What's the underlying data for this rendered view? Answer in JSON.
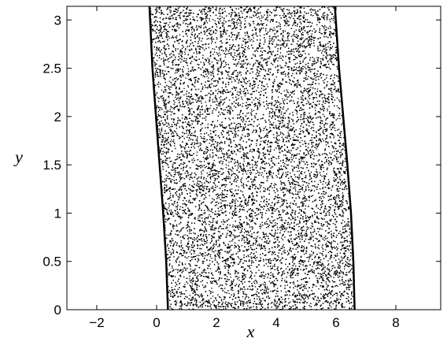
{
  "chart_data": {
    "type": "scatter",
    "title": "",
    "xlabel": "x",
    "ylabel": "y",
    "xlim": [
      -3,
      9.5
    ],
    "ylim": [
      0,
      3.1416
    ],
    "xticks": [
      -2,
      0,
      2,
      4,
      6,
      8
    ],
    "xtick_labels": [
      "−2",
      "0",
      "2",
      "4",
      "6",
      "8"
    ],
    "yticks": [
      0,
      0.5,
      1,
      1.5,
      2,
      2.5,
      3
    ],
    "ytick_labels": [
      "0",
      "0.5",
      "1",
      "1.5",
      "2",
      "2.5",
      "3"
    ],
    "grid": false,
    "legend": "none",
    "marker_color": "#000000",
    "band": {
      "left_boundary": [
        [
          0.38,
          0
        ],
        [
          0.32,
          0.5
        ],
        [
          0.22,
          1.0
        ],
        [
          0.1,
          1.5
        ],
        [
          -0.02,
          2.0
        ],
        [
          -0.14,
          2.5
        ],
        [
          -0.24,
          3.1416
        ]
      ],
      "right_boundary": [
        [
          6.62,
          0
        ],
        [
          6.58,
          0.5
        ],
        [
          6.5,
          1.0
        ],
        [
          6.38,
          1.5
        ],
        [
          6.24,
          2.0
        ],
        [
          6.1,
          2.5
        ],
        [
          5.96,
          3.1416
        ]
      ],
      "approx_point_count": 16000
    }
  }
}
